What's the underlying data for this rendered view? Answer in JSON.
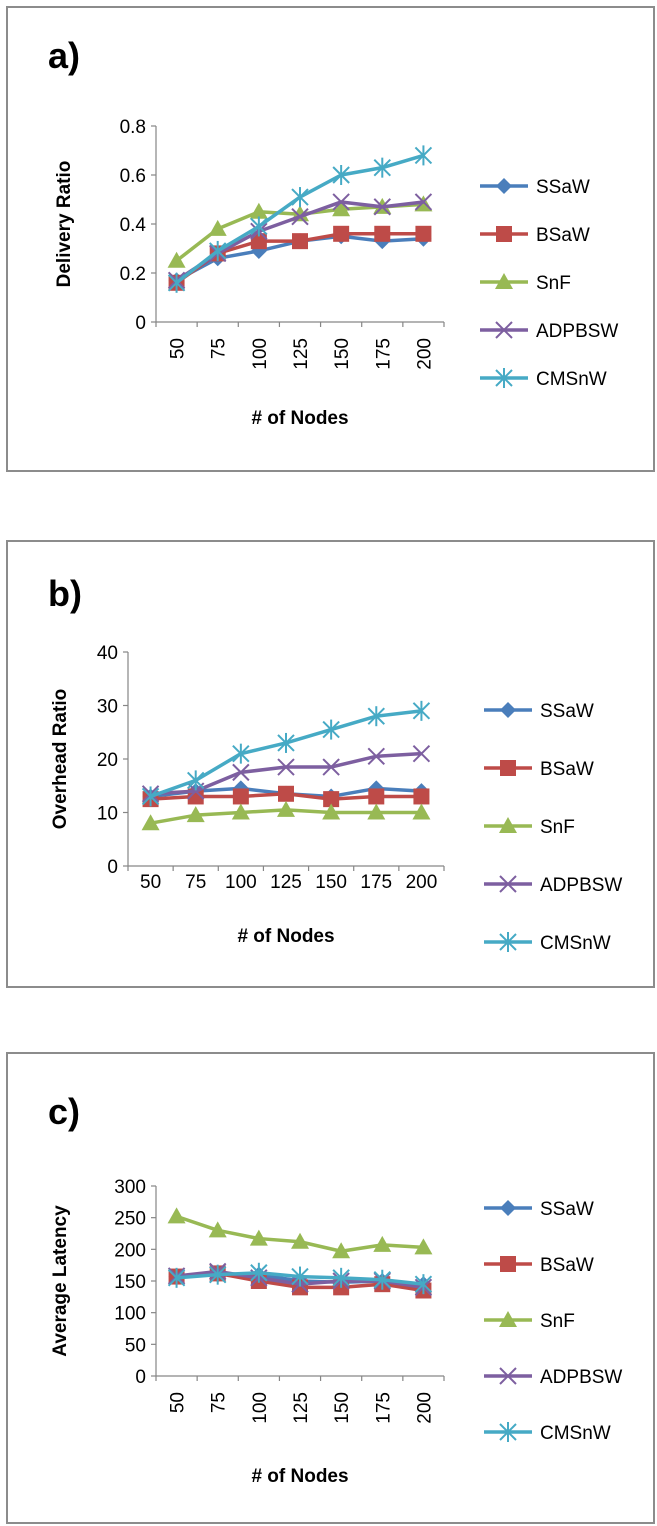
{
  "colors": {
    "SSaW": "#4a7ebb",
    "BSaW": "#be4b48",
    "SnF": "#98b954",
    "ADPBSW": "#7d5fa0",
    "CMSnW": "#46aac5"
  },
  "markers": {
    "SSaW": "diamond",
    "BSaW": "square",
    "SnF": "triangle",
    "ADPBSW": "x",
    "CMSnW": "star"
  },
  "chart_data": [
    {
      "panel_label": "a)",
      "type": "line",
      "title": "",
      "xlabel": "# of Nodes",
      "ylabel": "Delivery Ratio",
      "categories": [
        "50",
        "75",
        "100",
        "125",
        "150",
        "175",
        "200"
      ],
      "x_tick_rotation": "vertical",
      "yticks": [
        "0",
        "0.2",
        "0.4",
        "0.6",
        "0.8"
      ],
      "ylim": [
        0,
        0.8
      ],
      "grid": false,
      "legend_position": "right",
      "series": [
        {
          "name": "SSaW",
          "values": [
            0.17,
            0.26,
            0.29,
            0.33,
            0.35,
            0.33,
            0.34
          ]
        },
        {
          "name": "BSaW",
          "values": [
            0.16,
            0.28,
            0.33,
            0.33,
            0.36,
            0.36,
            0.36
          ]
        },
        {
          "name": "SnF",
          "values": [
            0.25,
            0.38,
            0.45,
            0.44,
            0.46,
            0.47,
            0.48
          ]
        },
        {
          "name": "ADPBSW",
          "values": [
            0.17,
            0.28,
            0.37,
            0.43,
            0.49,
            0.47,
            0.49
          ]
        },
        {
          "name": "CMSnW",
          "values": [
            0.16,
            0.29,
            0.39,
            0.51,
            0.6,
            0.63,
            0.68
          ]
        }
      ]
    },
    {
      "panel_label": "b)",
      "type": "line",
      "title": "",
      "xlabel": "# of Nodes",
      "ylabel": "Overhead Ratio",
      "categories": [
        "50",
        "75",
        "100",
        "125",
        "150",
        "175",
        "200"
      ],
      "x_tick_rotation": "horizontal",
      "yticks": [
        "0",
        "10",
        "20",
        "30",
        "40"
      ],
      "ylim": [
        0,
        40
      ],
      "grid": false,
      "legend_position": "right",
      "series": [
        {
          "name": "SSaW",
          "values": [
            13,
            14,
            14.5,
            13.5,
            13,
            14.5,
            14
          ]
        },
        {
          "name": "BSaW",
          "values": [
            12.5,
            13,
            13,
            13.5,
            12.5,
            13,
            13
          ]
        },
        {
          "name": "SnF",
          "values": [
            8,
            9.5,
            10,
            10.5,
            10,
            10,
            10
          ]
        },
        {
          "name": "ADPBSW",
          "values": [
            13.5,
            14,
            17.5,
            18.5,
            18.5,
            20.5,
            21
          ]
        },
        {
          "name": "CMSnW",
          "values": [
            13,
            16,
            21,
            23,
            25.5,
            28,
            29
          ]
        }
      ]
    },
    {
      "panel_label": "c)",
      "type": "line",
      "title": "",
      "xlabel": "# of Nodes",
      "ylabel": "Average Latency",
      "categories": [
        "50",
        "75",
        "100",
        "125",
        "150",
        "175",
        "200"
      ],
      "x_tick_rotation": "vertical",
      "yticks": [
        "0",
        "50",
        "100",
        "150",
        "200",
        "250",
        "300"
      ],
      "ylim": [
        0,
        300
      ],
      "grid": false,
      "legend_position": "right",
      "series": [
        {
          "name": "SSaW",
          "values": [
            157,
            160,
            160,
            150,
            148,
            150,
            145
          ]
        },
        {
          "name": "BSaW",
          "values": [
            157,
            162,
            150,
            140,
            140,
            145,
            135
          ]
        },
        {
          "name": "SnF",
          "values": [
            252,
            230,
            217,
            212,
            197,
            207,
            203
          ]
        },
        {
          "name": "ADPBSW",
          "values": [
            158,
            165,
            155,
            145,
            150,
            150,
            140
          ]
        },
        {
          "name": "CMSnW",
          "values": [
            155,
            160,
            163,
            157,
            155,
            152,
            145
          ]
        }
      ]
    }
  ]
}
